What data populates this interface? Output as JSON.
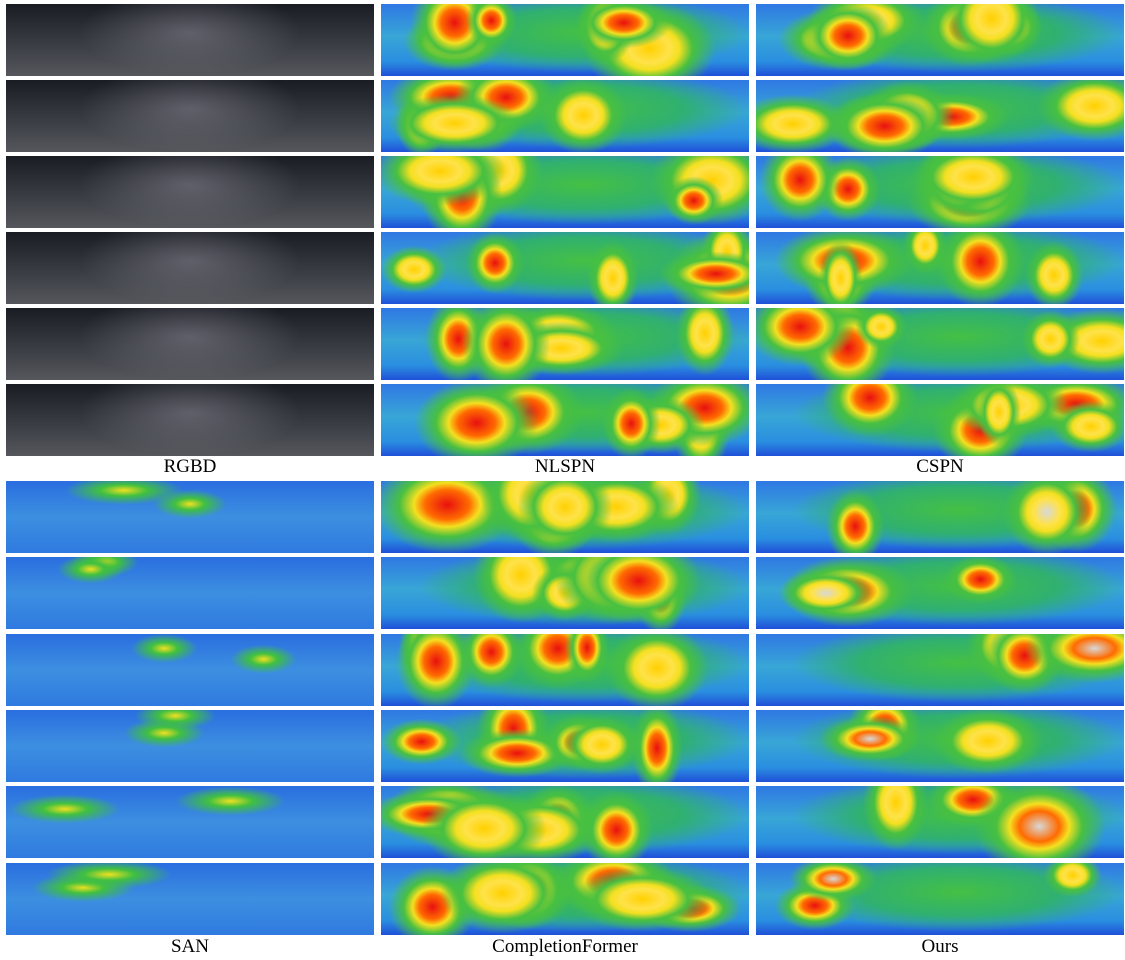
{
  "figure": {
    "top_labels": [
      "RGBD",
      "NLSPN",
      "CSPN"
    ],
    "bottom_labels": [
      "SAN",
      "CompletionFormer",
      "Ours"
    ]
  }
}
